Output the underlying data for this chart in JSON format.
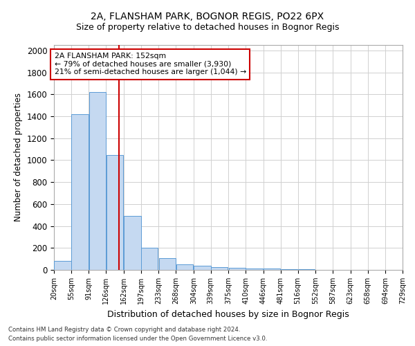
{
  "title1": "2A, FLANSHAM PARK, BOGNOR REGIS, PO22 6PX",
  "title2": "Size of property relative to detached houses in Bognor Regis",
  "xlabel": "Distribution of detached houses by size in Bognor Regis",
  "ylabel": "Number of detached properties",
  "footer1": "Contains HM Land Registry data © Crown copyright and database right 2024.",
  "footer2": "Contains public sector information licensed under the Open Government Licence v3.0.",
  "annotation_title": "2A FLANSHAM PARK: 152sqm",
  "annotation_line1": "← 79% of detached houses are smaller (3,930)",
  "annotation_line2": "21% of semi-detached houses are larger (1,044) →",
  "property_sqm": 152,
  "bar_edge_color": "#5b9bd5",
  "bar_face_color": "#c5d9f1",
  "vline_color": "#cc0000",
  "annotation_box_color": "#cc0000",
  "background_color": "#ffffff",
  "grid_color": "#d0d0d0",
  "bin_labels": [
    "20sqm",
    "55sqm",
    "91sqm",
    "126sqm",
    "162sqm",
    "197sqm",
    "233sqm",
    "268sqm",
    "304sqm",
    "339sqm",
    "375sqm",
    "410sqm",
    "446sqm",
    "481sqm",
    "516sqm",
    "552sqm",
    "587sqm",
    "623sqm",
    "658sqm",
    "694sqm",
    "729sqm"
  ],
  "bin_starts": [
    20,
    55,
    91,
    126,
    162,
    197,
    233,
    268,
    304,
    339,
    375,
    410,
    446,
    481,
    516,
    552,
    587,
    623,
    658,
    694
  ],
  "bin_width": 35,
  "bar_heights": [
    80,
    1420,
    1620,
    1050,
    490,
    205,
    105,
    48,
    38,
    25,
    20,
    15,
    10,
    8,
    5,
    3,
    2,
    1,
    1,
    0
  ],
  "ylim": [
    0,
    2050
  ],
  "yticks": [
    0,
    200,
    400,
    600,
    800,
    1000,
    1200,
    1400,
    1600,
    1800,
    2000
  ],
  "title1_fontsize": 10,
  "title2_fontsize": 9
}
